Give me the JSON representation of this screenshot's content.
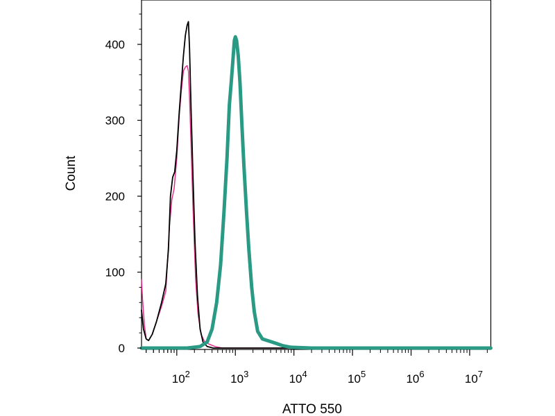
{
  "chart_data": {
    "type": "line",
    "title": "",
    "xlabel": "ATTO 550",
    "ylabel": "Count",
    "x_scale": "log",
    "xlim": [
      25,
      23000000
    ],
    "ylim": [
      0,
      440
    ],
    "grid": false,
    "legend": "none",
    "y_ticks": [
      {
        "value": 0,
        "label": "0"
      },
      {
        "value": 100,
        "label": "100"
      },
      {
        "value": 200,
        "label": "200"
      },
      {
        "value": 300,
        "label": "300"
      },
      {
        "value": 400,
        "label": "400"
      }
    ],
    "x_ticks": [
      {
        "value": 100,
        "base": "10",
        "exp": "2"
      },
      {
        "value": 1000,
        "base": "10",
        "exp": "3"
      },
      {
        "value": 10000,
        "base": "10",
        "exp": "4"
      },
      {
        "value": 100000,
        "base": "10",
        "exp": "5"
      },
      {
        "value": 1000000,
        "base": "10",
        "exp": "6"
      },
      {
        "value": 10000000,
        "base": "10",
        "exp": "7"
      }
    ],
    "series": [
      {
        "color": "#e0308a",
        "width": 1.5,
        "points": [
          [
            25,
            90
          ],
          [
            26,
            65
          ],
          [
            28,
            30
          ],
          [
            30,
            12
          ],
          [
            33,
            10
          ],
          [
            38,
            18
          ],
          [
            45,
            35
          ],
          [
            55,
            55
          ],
          [
            65,
            75
          ],
          [
            75,
            160
          ],
          [
            82,
            195
          ],
          [
            90,
            210
          ],
          [
            100,
            250
          ],
          [
            110,
            305
          ],
          [
            120,
            340
          ],
          [
            130,
            365
          ],
          [
            140,
            370
          ],
          [
            150,
            372
          ],
          [
            158,
            365
          ],
          [
            165,
            330
          ],
          [
            175,
            270
          ],
          [
            190,
            180
          ],
          [
            210,
            90
          ],
          [
            230,
            45
          ],
          [
            260,
            18
          ],
          [
            300,
            8
          ],
          [
            360,
            5
          ],
          [
            450,
            2
          ],
          [
            600,
            0
          ],
          [
            1000,
            0
          ],
          [
            10000000,
            0
          ],
          [
            23000000,
            0
          ]
        ]
      },
      {
        "color": "#000000",
        "width": 1.8,
        "points": [
          [
            25,
            50
          ],
          [
            27,
            25
          ],
          [
            30,
            12
          ],
          [
            33,
            10
          ],
          [
            38,
            18
          ],
          [
            45,
            35
          ],
          [
            55,
            60
          ],
          [
            65,
            85
          ],
          [
            72,
            130
          ],
          [
            78,
            200
          ],
          [
            85,
            225
          ],
          [
            92,
            232
          ],
          [
            100,
            260
          ],
          [
            110,
            310
          ],
          [
            120,
            350
          ],
          [
            130,
            385
          ],
          [
            140,
            412
          ],
          [
            150,
            425
          ],
          [
            158,
            430
          ],
          [
            165,
            395
          ],
          [
            175,
            320
          ],
          [
            190,
            220
          ],
          [
            205,
            140
          ],
          [
            225,
            70
          ],
          [
            250,
            25
          ],
          [
            280,
            8
          ],
          [
            330,
            2
          ],
          [
            420,
            0
          ],
          [
            1000,
            0
          ],
          [
            10000000,
            0
          ],
          [
            23000000,
            0
          ]
        ]
      },
      {
        "color": "#2a9a85",
        "width": 5,
        "points": [
          [
            25,
            0
          ],
          [
            150,
            0
          ],
          [
            250,
            2
          ],
          [
            330,
            8
          ],
          [
            400,
            25
          ],
          [
            480,
            60
          ],
          [
            560,
            110
          ],
          [
            640,
            180
          ],
          [
            720,
            250
          ],
          [
            790,
            320
          ],
          [
            850,
            350
          ],
          [
            910,
            380
          ],
          [
            960,
            405
          ],
          [
            1000,
            410
          ],
          [
            1050,
            405
          ],
          [
            1120,
            385
          ],
          [
            1200,
            350
          ],
          [
            1300,
            290
          ],
          [
            1400,
            240
          ],
          [
            1550,
            180
          ],
          [
            1700,
            130
          ],
          [
            1900,
            80
          ],
          [
            2100,
            48
          ],
          [
            2400,
            22
          ],
          [
            2900,
            12
          ],
          [
            3500,
            10
          ],
          [
            4200,
            8
          ],
          [
            5000,
            6
          ],
          [
            6500,
            3
          ],
          [
            9000,
            1
          ],
          [
            20000,
            0
          ],
          [
            100000,
            0
          ],
          [
            10000000,
            0
          ],
          [
            23000000,
            0
          ]
        ]
      }
    ]
  }
}
